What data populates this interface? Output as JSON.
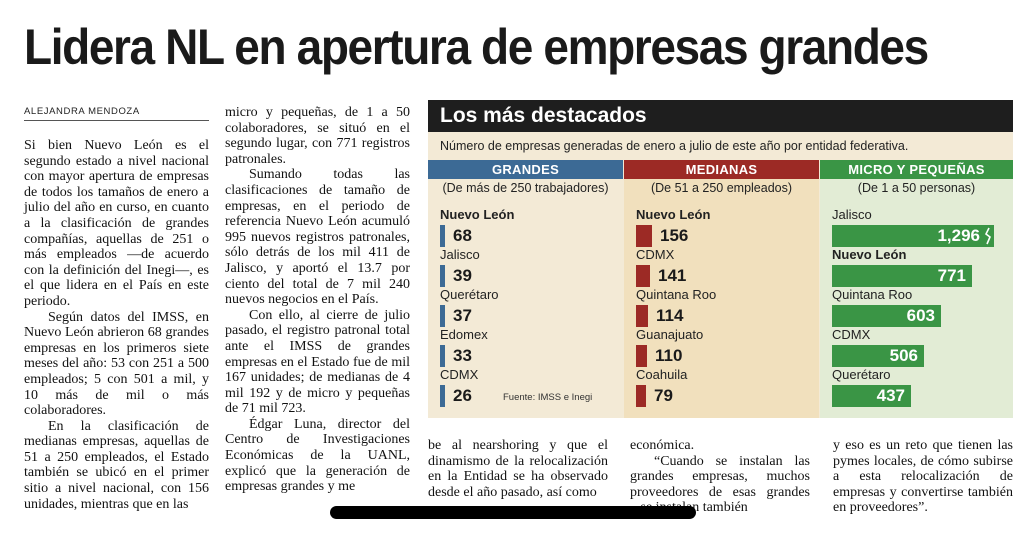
{
  "headline": "Lidera NL en apertura de empresas grandes",
  "byline": "ALEJANDRA MENDOZA",
  "column1": [
    "Si bien Nuevo León es el segundo estado a nivel nacional con mayor apertura de empresas de todos los tamaños de enero a julio del año en curso, en cuanto a la clasificación de grandes compañías, aquellas de 251 o más empleados —de acuerdo con la definición del Inegi—, es el que lidera en el País en este periodo.",
    "Según datos del IMSS, en Nuevo León abrieron 68 grandes empresas en los primeros siete meses del año: 53 con 251 a 500 empleados; 5 con 501 a mil, y 10 más de mil o más colaboradores.",
    "En la clasificación de medianas empresas, aquellas de 51 a 250 empleados, el Estado también se ubicó en el primer sitio a nivel nacional, con 156 unidades, mientras que en las"
  ],
  "column2": [
    "micro y pequeñas, de 1 a 50 colaboradores, se situó en el segundo lugar, con 771 registros patronales.",
    "Sumando todas las clasificaciones de tamaño de empresas, en el periodo de referencia Nuevo León acumuló 995 nuevos registros patronales, sólo detrás de los mil 411 de Jalisco, y aportó el 13.7 por ciento del total de 7 mil 240 nuevos negocios en el País.",
    "Con ello, al cierre de julio pasado, el registro patronal total ante el IMSS de grandes empresas en el Estado fue de mil 167 unidades; de medianas de 4 mil 192 y de micro y pequeñas de 71 mil 723.",
    "Édgar Luna, director del Centro de Investigaciones Económicas de la UANL, explicó que la generación de empresas grandes y me"
  ],
  "column3": "be al nearshoring y que el dinamismo de la relocalización en la Entidad se ha observado desde el año pasado, así como",
  "column4": [
    "económica.",
    "“Cuando se instalan las grandes empresas, muchos proveedores de esas grandes ...se instalan también"
  ],
  "column5": "y eso es un reto que tienen las pymes locales, de cómo subirse a esta relocalización de empresas y convertirse también en proveedores”.",
  "infobox": {
    "title": "Los más destacados",
    "subtitle": "Número de empresas generadas de enero a julio de este año por entidad federativa.",
    "source": "Fuente: IMSS e Inegi",
    "colors": {
      "grandes": "#3c6a95",
      "medianas": "#9c2a25",
      "micro": "#3a9545",
      "title_bg": "#1e1e1e"
    }
  },
  "chart_data": [
    {
      "type": "bar",
      "title": "GRANDES",
      "subtitle": "(De más de 250 trabajadores)",
      "categories": [
        "Nuevo León",
        "Jalisco",
        "Querétaro",
        "Edomex",
        "CDMX"
      ],
      "values": [
        68,
        39,
        37,
        33,
        26
      ],
      "value_labels": [
        "68",
        "39",
        "37",
        "33",
        "26"
      ]
    },
    {
      "type": "bar",
      "title": "MEDIANAS",
      "subtitle": "(De 51 a 250 empleados)",
      "categories": [
        "Nuevo León",
        "CDMX",
        "Quintana Roo",
        "Guanajuato",
        "Coahuila"
      ],
      "values": [
        156,
        141,
        114,
        110,
        79
      ],
      "value_labels": [
        "156",
        "141",
        "114",
        "110",
        "79"
      ]
    },
    {
      "type": "bar",
      "title": "MICRO Y PEQUEÑAS",
      "subtitle": "(De 1 a 50 personas)",
      "categories": [
        "Jalisco",
        "Nuevo León",
        "Quintana Roo",
        "CDMX",
        "Querétaro"
      ],
      "values": [
        1296,
        771,
        603,
        506,
        437
      ],
      "value_labels": [
        "1,296",
        "771",
        "603",
        "506",
        "437"
      ],
      "axis_break_on_first": true
    }
  ]
}
